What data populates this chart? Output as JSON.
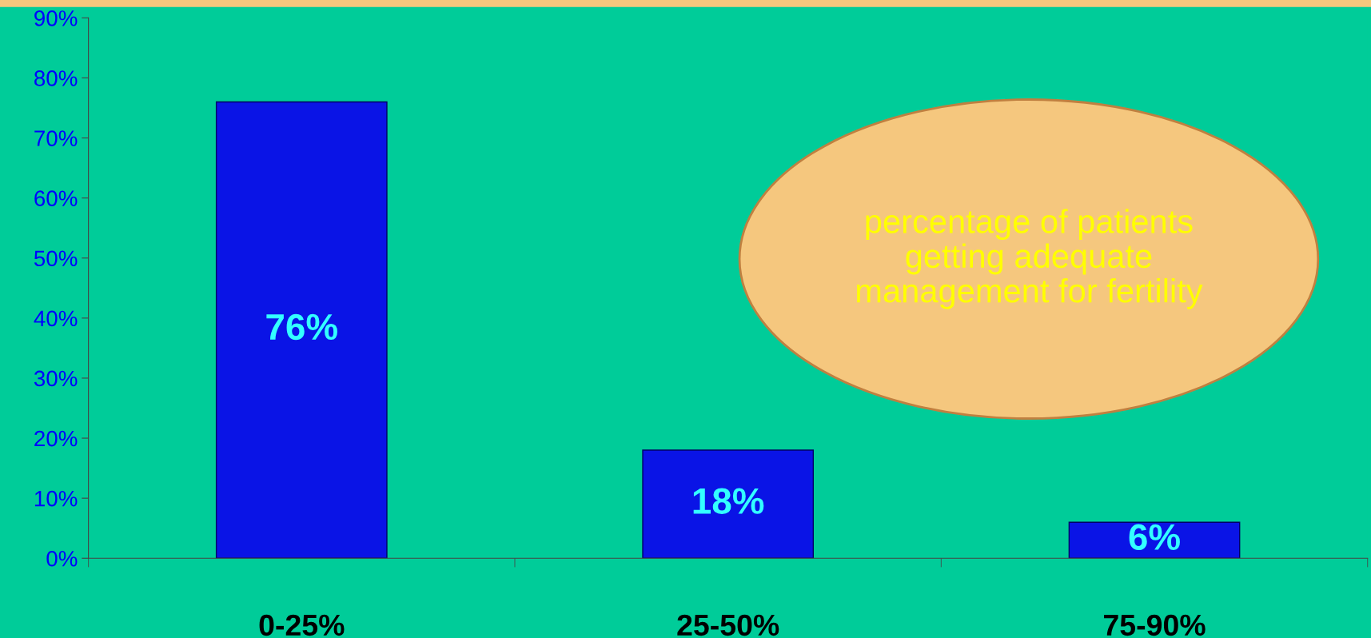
{
  "chart_data": {
    "type": "bar",
    "categories": [
      "0-25%",
      "25-50%",
      "75-90%"
    ],
    "values": [
      76,
      18,
      6
    ],
    "color": "#0a14e6",
    "value_labels": [
      "76%",
      "18%",
      "6%"
    ],
    "ylim": [
      0,
      90
    ],
    "yticks": [
      {
        "value": 0,
        "label": "0%"
      },
      {
        "value": 10,
        "label": "10%"
      },
      {
        "value": 20,
        "label": "20%"
      },
      {
        "value": 30,
        "label": "30%"
      },
      {
        "value": 40,
        "label": "40%"
      },
      {
        "value": 50,
        "label": "50%"
      },
      {
        "value": 60,
        "label": "60%"
      },
      {
        "value": 70,
        "label": "70%"
      },
      {
        "value": 80,
        "label": "80%"
      },
      {
        "value": 90,
        "label": "90%"
      }
    ],
    "grid": false,
    "legend": false,
    "annotations": [
      "percentage of patients getting adequate management for fertility"
    ]
  }
}
